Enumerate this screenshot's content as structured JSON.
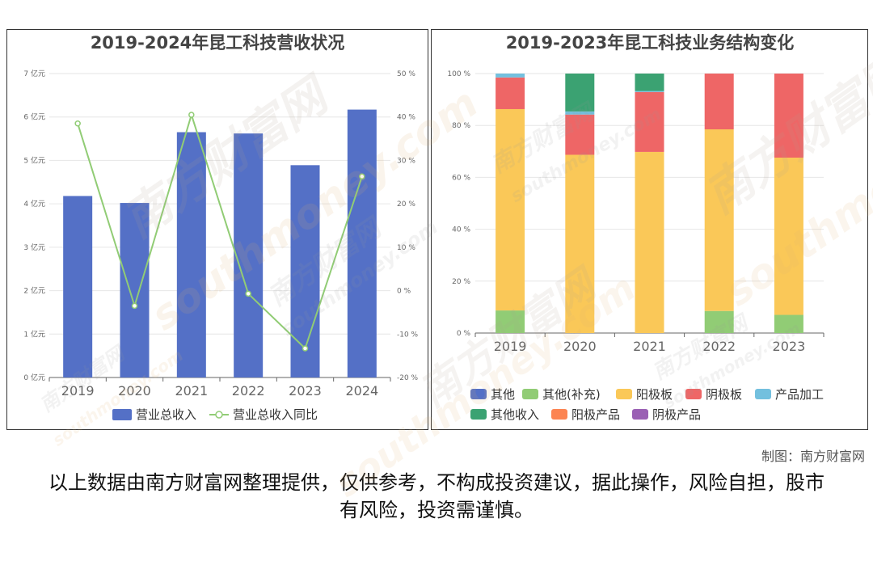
{
  "chart_data": [
    {
      "type": "bar",
      "title": "2019-2024年昆工科技营收状况",
      "categories": [
        "2019",
        "2020",
        "2021",
        "2022",
        "2023",
        "2024"
      ],
      "series": [
        {
          "name": "营业总收入",
          "type": "bar",
          "axis": "left",
          "color": "#5470c6",
          "values": [
            4.18,
            4.02,
            5.65,
            5.62,
            4.89,
            6.17
          ]
        },
        {
          "name": "营业总收入同比",
          "type": "line",
          "axis": "right",
          "color": "#91cc75",
          "values": [
            38.5,
            -3.5,
            40.5,
            -0.7,
            -13.3,
            26.3
          ]
        }
      ],
      "left_axis": {
        "ylim": [
          0,
          7
        ],
        "ticks": [
          "0 亿元",
          "1 亿元",
          "2 亿元",
          "3 亿元",
          "4 亿元",
          "5 亿元",
          "6 亿元",
          "7 亿元"
        ]
      },
      "right_axis": {
        "ylim": [
          -20,
          50
        ],
        "ticks": [
          "-20 %",
          "-10 %",
          "0 %",
          "10 %",
          "20 %",
          "30 %",
          "40 %",
          "50 %"
        ]
      },
      "legend": "bottom"
    },
    {
      "type": "bar",
      "stacked": true,
      "title": "2019-2023年昆工科技业务结构变化",
      "categories": [
        "2019",
        "2020",
        "2021",
        "2022",
        "2023"
      ],
      "series": [
        {
          "name": "其他",
          "color": "#5470c6",
          "values": [
            0,
            0,
            0,
            0,
            0
          ]
        },
        {
          "name": "其他(补充)",
          "color": "#91cc75",
          "values": [
            8.7,
            0,
            0,
            8.5,
            7.0
          ]
        },
        {
          "name": "阳极板",
          "color": "#fac858",
          "values": [
            77.6,
            68.7,
            69.8,
            70.0,
            60.6
          ]
        },
        {
          "name": "阴极板",
          "color": "#ee6666",
          "values": [
            12.2,
            15.5,
            23.1,
            21.5,
            32.4
          ]
        },
        {
          "name": "产品加工",
          "color": "#73c0de",
          "values": [
            1.5,
            1.2,
            0.4,
            0,
            0
          ]
        },
        {
          "name": "其他收入",
          "color": "#3ba272",
          "values": [
            0,
            14.6,
            6.7,
            0,
            0
          ]
        },
        {
          "name": "阳极产品",
          "color": "#fc8452",
          "values": [
            0,
            0,
            0,
            0,
            0
          ]
        },
        {
          "name": "阴极产品",
          "color": "#9a60b4",
          "values": [
            0,
            0,
            0,
            0,
            0
          ]
        }
      ],
      "ylim": [
        0,
        100
      ],
      "ticks": [
        "0 %",
        "20 %",
        "40 %",
        "60 %",
        "80 %",
        "100 %"
      ],
      "legend": "bottom"
    }
  ],
  "watermark": {
    "brand": "南方财富网",
    "url": "southmoney.com"
  },
  "footer": {
    "credit": "制图：南方财富网",
    "disclaimer": "以上数据由南方财富网整理提供，仅供参考，不构成投资建议，据此操作，风险自担，股市有风险，投资需谨慎。"
  }
}
